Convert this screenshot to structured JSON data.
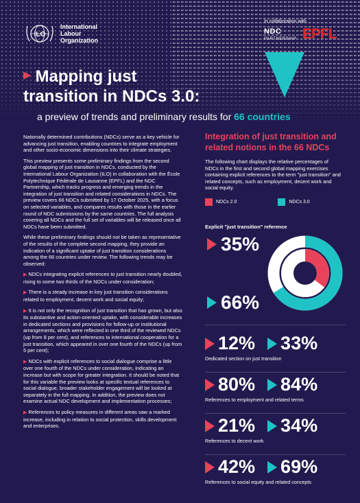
{
  "header": {
    "org_line1": "International",
    "org_line2": "Labour",
    "org_line3": "Organization",
    "collab_label": "In collaboration with",
    "ndc_name": "NDC",
    "ndc_sub": "PARTNERSHIP",
    "epfl_name": "EPFL"
  },
  "title": {
    "line1": "Mapping just",
    "line2": "transition in NDCs 3.0:",
    "subtitle_prefix": "a preview of trends and preliminary results for ",
    "subtitle_highlight": "66 countries"
  },
  "left": {
    "p1": "Nationally determined contributions (NDCs) serve as a key vehicle for advancing just transition, enabling countries to integrate employment and other socio-economic dimensions into their climate strategies.",
    "p2": "This preview presents some preliminary findings from the second global mapping of just transition in NDCs, conducted by the International Labour Organization (ILO) in collaboration with the École Polytechnique Fédérale de Lausanne (EPFL) and the NDC Partnership, which tracks progress and emerging trends in the integration of just transition and related considerations in NDCs. The preview covers 66 NDCs submitted by 17 October 2025, with a focus on selected variables, and compares results with those in the earlier round of NDC submissions by the same countries. The full analysis covering all NDCs and the full set of variables will be released once all NDCs have been submitted.",
    "p3": "While these preliminary findings should not be taken as representative of the results of the complete second mapping, they provide an indication of a significant uptake of just transition considerations among the 66 countries under review. The following trends may be observed:",
    "b1": "NDCs integrating explicit references to just transition nearly doubled, rising to some two thirds of the NDCs under consideration;",
    "b2": "There is a steady increase in key just transition considerations related to employment, decent work and social equity;",
    "b3": "It is not only the recognition of just transition that has grown, but also its substantive and action-oriented uptake, with considerable increases in dedicated sections and provisions for follow-up or institutional arrangements, which were reflected in one third of the reviewed NDCs (up from 8 per cent), and references to international cooperation for a just transition, which appeared in over one fourth of the NDCs (up from 5 per cent);",
    "b4": "NDCs with explicit references to social dialogue comprise a little over one fourth of the NDCs under consideration, indicating an increase but with scope for greater integration. It should be noted that for this variable the preview looks at specific textual references to social dialogue, broader stakeholder engagement will be looked at separately in the full mapping. In addition, the preview does not examine actual NDC development and implementation processes;",
    "b5": "References to policy measures in different areas saw a marked increase, including in relation to social protection, skills development and enterprises."
  },
  "right": {
    "heading": "Integration of just transition and related notions in the 66 NDCs",
    "desc": "The following chart displays the relative percentages of NDCs in the first and second global mapping exercises containing explicit references to the term \"just transition\" and related concepts, such as employment, decent work and social equity.",
    "legend_a": "NDCs 2.0",
    "legend_b": "NDCs 3.0",
    "colors": {
      "ndc2": "#e8435a",
      "ndc3": "#1fc3c6",
      "bg": "#221a4e"
    }
  },
  "chart_data": {
    "type": "table",
    "series": [
      {
        "name": "NDCs 2.0",
        "values": [
          35,
          12,
          80,
          21,
          42
        ]
      },
      {
        "name": "NDCs 3.0",
        "values": [
          66,
          33,
          84,
          34,
          69
        ]
      }
    ],
    "categories": [
      "Explicit \"just transition\" reference",
      "Dedicated section on just transition",
      "References to employment and related terms",
      "References to decent work",
      "References to social equity and related concepts"
    ],
    "display": [
      {
        "a": "35%",
        "b": "66%"
      },
      {
        "a": "12%",
        "b": "33%"
      },
      {
        "a": "80%",
        "b": "84%"
      },
      {
        "a": "21%",
        "b": "34%"
      },
      {
        "a": "42%",
        "b": "69%"
      }
    ]
  }
}
